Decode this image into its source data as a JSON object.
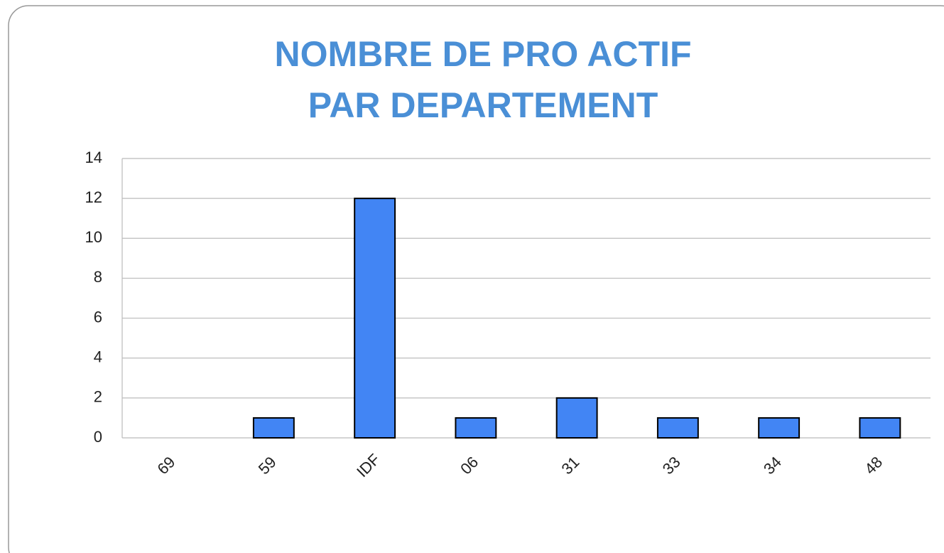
{
  "chart_data": {
    "type": "bar",
    "title": "NOMBRE DE PRO ACTIF PAR DEPARTEMENT",
    "categories": [
      "69",
      "59",
      "IDF",
      "06",
      "31",
      "33",
      "34",
      "48"
    ],
    "values": [
      0,
      1,
      12,
      1,
      2,
      1,
      1,
      1
    ],
    "color": "#4285f4",
    "ylim": [
      0,
      14
    ],
    "yticks": [
      0,
      2,
      4,
      6,
      8,
      10,
      12,
      14
    ],
    "grid": true
  }
}
